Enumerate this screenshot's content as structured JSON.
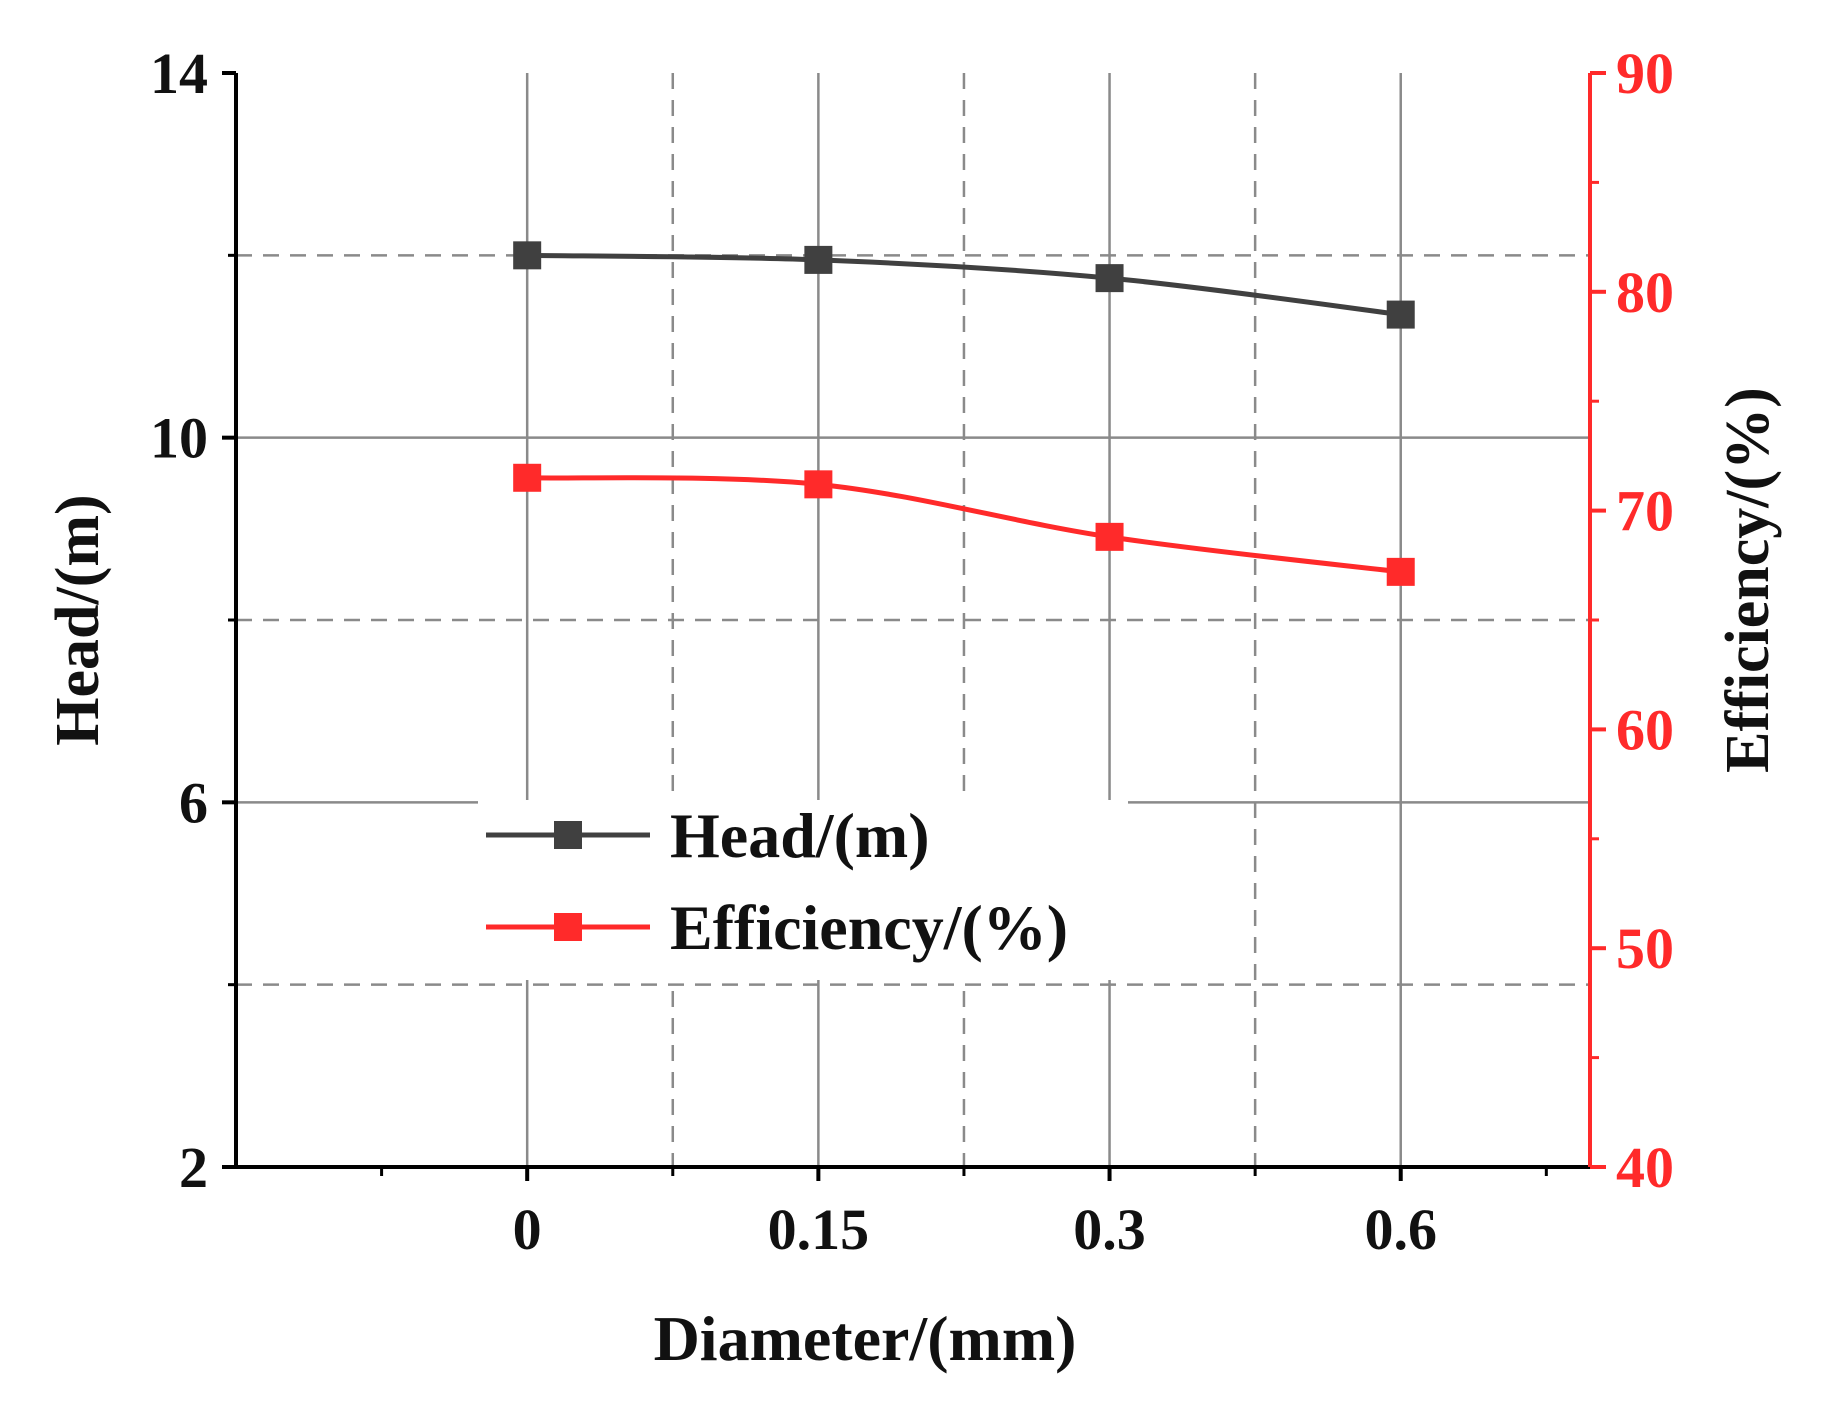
{
  "chart_data": {
    "type": "line",
    "categories": [
      "0",
      "0.15",
      "0.3",
      "0.6"
    ],
    "xlabel": "Diameter/(mm)",
    "y_left": {
      "label": "Head/(m)",
      "range": [
        2,
        14
      ],
      "ticks": [
        "2",
        "6",
        "10",
        "14"
      ]
    },
    "y_right": {
      "label": "Efficiency/(%)",
      "range": [
        40,
        90
      ],
      "ticks": [
        "40",
        "50",
        "60",
        "70",
        "80",
        "90"
      ]
    },
    "grid": true,
    "legend": "center",
    "series": [
      {
        "name": "Head/(m)",
        "axis": "left",
        "color": "#404040",
        "values": [
          12.0,
          11.95,
          11.75,
          11.35
        ]
      },
      {
        "name": "Efficiency/(%)",
        "axis": "right",
        "color": "#ff2a2a",
        "values": [
          71.5,
          71.2,
          68.8,
          67.2
        ]
      }
    ]
  }
}
